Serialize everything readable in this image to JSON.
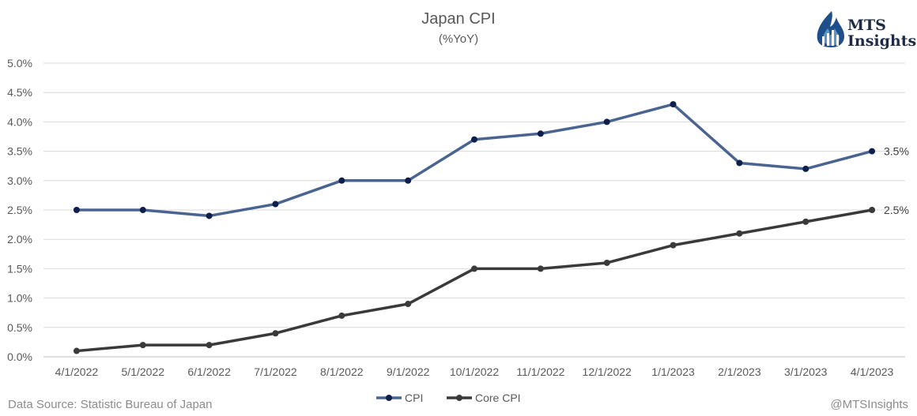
{
  "chart_data": {
    "type": "line",
    "title": "Japan CPI",
    "subtitle": "(%YoY)",
    "categories": [
      "4/1/2022",
      "5/1/2022",
      "6/1/2022",
      "7/1/2022",
      "8/1/2022",
      "9/1/2022",
      "10/1/2022",
      "11/1/2022",
      "12/1/2022",
      "1/1/2023",
      "2/1/2023",
      "3/1/2023",
      "4/1/2023"
    ],
    "series": [
      {
        "name": "CPI",
        "color": "#4a6491",
        "marker_color": "#0f1f4d",
        "values": [
          2.5,
          2.5,
          2.4,
          2.6,
          3.0,
          3.0,
          3.7,
          3.8,
          4.0,
          4.3,
          3.3,
          3.2,
          3.5
        ],
        "end_label": "3.5%"
      },
      {
        "name": "Core CPI",
        "color": "#3a3a3a",
        "marker_color": "#3a3a3a",
        "values": [
          0.1,
          0.2,
          0.2,
          0.4,
          0.7,
          0.9,
          1.5,
          1.5,
          1.6,
          1.9,
          2.1,
          2.3,
          2.5
        ],
        "end_label": "2.5%"
      }
    ],
    "ylim": [
      0,
      5
    ],
    "yticks": [
      "0.0%",
      "0.5%",
      "1.0%",
      "1.5%",
      "2.0%",
      "2.5%",
      "3.0%",
      "3.5%",
      "4.0%",
      "4.5%",
      "5.0%"
    ],
    "grid": true,
    "legend_position": "bottom"
  },
  "logo": {
    "line1": "MTS",
    "line2": "Insights"
  },
  "footer": {
    "source": "Data Source: Statistic Bureau of Japan",
    "handle": "@MTSInsights"
  }
}
